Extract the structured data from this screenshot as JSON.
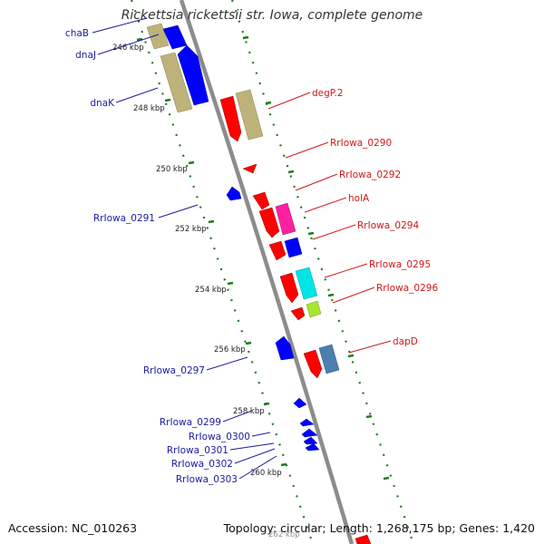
{
  "title": "Rickettsia rickettsii str. Iowa, complete genome",
  "footer": {
    "accession": "Accession: NC_010263",
    "summary": "Topology: circular; Length: 1,268,175 bp; Genes: 1,420"
  },
  "colors": {
    "backbone": "#8c8c8c",
    "tick_marks": "#1e7d1e",
    "forward_label": "#d01818",
    "reverse_label": "#1a1aa0",
    "red": "#ff0000",
    "blue": "#0000ff",
    "tan": "#bdb37a",
    "magenta": "#ff1fa0",
    "cyan": "#00e5e5",
    "lime": "#a8e630",
    "steelblue": "#4a7fb0"
  },
  "ticks": [
    {
      "label": "246 kbp"
    },
    {
      "label": "248 kbp"
    },
    {
      "label": "250 kbp"
    },
    {
      "label": "252 kbp"
    },
    {
      "label": "254 kbp"
    },
    {
      "label": "256 kbp"
    },
    {
      "label": "258 kbp"
    },
    {
      "label": "260 kbp"
    },
    {
      "label": "262 kbp"
    }
  ],
  "reverse_labels": [
    {
      "name": "chaB"
    },
    {
      "name": "dnaJ"
    },
    {
      "name": "dnaK"
    },
    {
      "name": "RrIowa_0291"
    },
    {
      "name": "RrIowa_0297"
    },
    {
      "name": "RrIowa_0299"
    },
    {
      "name": "RrIowa_0300"
    },
    {
      "name": "RrIowa_0301"
    },
    {
      "name": "RrIowa_0302"
    },
    {
      "name": "RrIowa_0303"
    }
  ],
  "forward_labels": [
    {
      "name": "degP.2"
    },
    {
      "name": "RrIowa_0290"
    },
    {
      "name": "RrIowa_0292"
    },
    {
      "name": "holA"
    },
    {
      "name": "RrIowa_0294"
    },
    {
      "name": "RrIowa_0295"
    },
    {
      "name": "RrIowa_0296"
    },
    {
      "name": "dapD"
    }
  ]
}
